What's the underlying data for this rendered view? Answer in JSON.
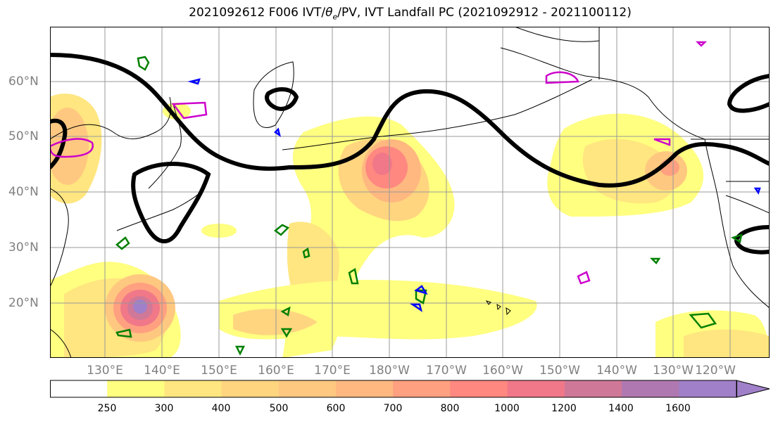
{
  "title_prefix": "2021092612 F006 IVT/",
  "title_theta": "θ",
  "title_sub": "e",
  "title_suffix": "/PV, IVT Landfall PC (2021092912 - 2021100112)",
  "lat_labels": [
    "60°N",
    "50°N",
    "40°N",
    "30°N",
    "20°N"
  ],
  "lon_labels": [
    "130°E",
    "140°E",
    "150°E",
    "160°E",
    "170°E",
    "180°W",
    "170°W",
    "160°W",
    "150°W",
    "140°W",
    "130°W",
    "120°W"
  ],
  "colorbar": {
    "ticks": [
      "250",
      "300",
      "400",
      "500",
      "600",
      "700",
      "800",
      "1000",
      "1200",
      "1400",
      "1600"
    ],
    "colors": [
      "#ffffff",
      "#ffff80",
      "#ffe680",
      "#ffd580",
      "#ffc880",
      "#ffb880",
      "#ffa080",
      "#ff8880",
      "#f07888",
      "#d07898",
      "#b078b0",
      "#a080c8"
    ]
  },
  "colors": {
    "ivt_low": "#ffff80",
    "ivt_mid": "#ffc080",
    "ivt_high": "#ff8080",
    "ivt_peak": "#a078c0",
    "theta_e_contour": "#000000",
    "pv_green": "#008000",
    "pv_blue": "#0000ff",
    "pv_magenta": "#cc00cc",
    "coastline": "#000000",
    "grid": "#999999"
  }
}
